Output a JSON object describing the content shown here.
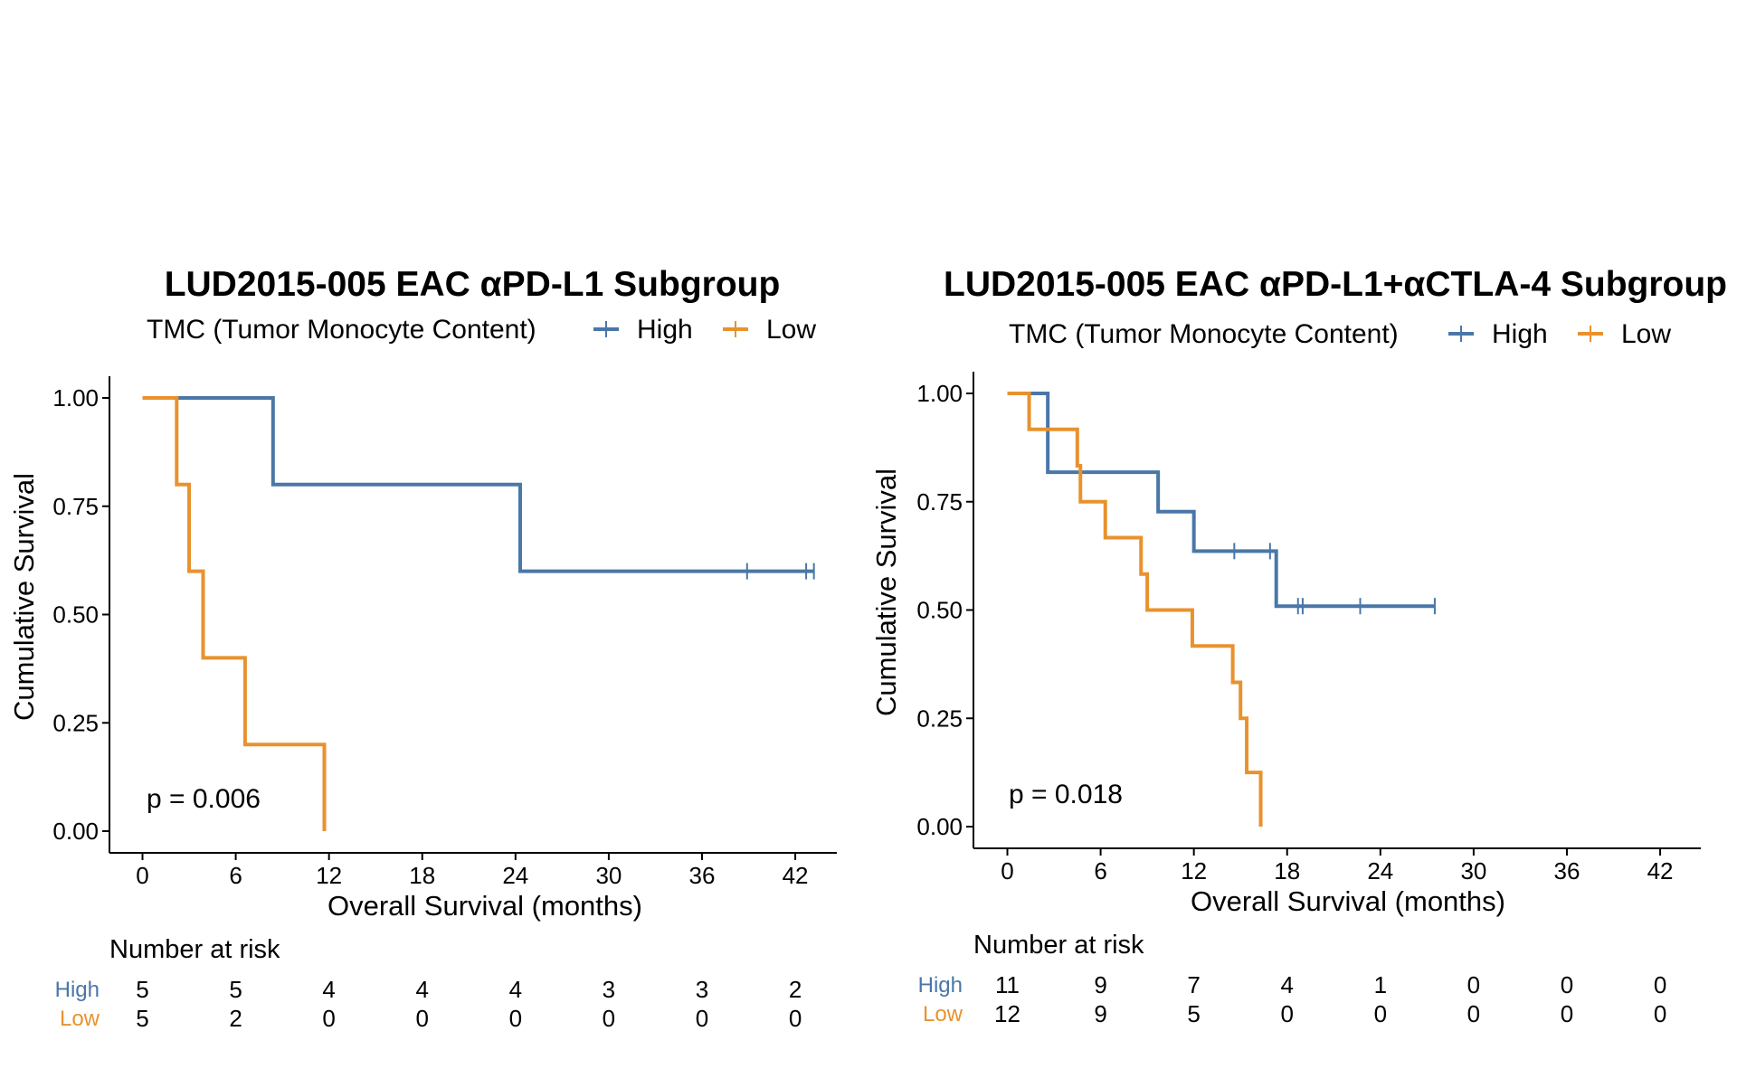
{
  "colors": {
    "high": "#4a77a7",
    "low": "#e8922e",
    "axis": "#000000"
  },
  "chart_data": [
    {
      "type": "line",
      "title": "LUD2015-005 EAC αPD-L1 Subgroup",
      "legend": {
        "title": "TMC (Tumor Monocyte Content)",
        "position": "top",
        "entries": [
          "High",
          "Low"
        ]
      },
      "xlabel": "Overall Survival (months)",
      "ylabel": "Cumulative Survival",
      "xlim": [
        0,
        43
      ],
      "ylim": [
        0,
        1
      ],
      "xticks": [
        0,
        6,
        12,
        18,
        24,
        30,
        36,
        42
      ],
      "xtick_labels": [
        "0",
        "6",
        "12",
        "18",
        "24",
        "30",
        "36",
        "42"
      ],
      "yticks": [
        0,
        0.25,
        0.5,
        0.75,
        1
      ],
      "ytick_labels": [
        "0.00",
        "0.25",
        "0.50",
        "0.75",
        "1.00"
      ],
      "pvalue": "p = 0.006",
      "series": [
        {
          "name": "High",
          "color": "#4a77a7",
          "x": [
            0,
            8.4,
            24.3,
            43.2
          ],
          "y": [
            1,
            0.8,
            0.6,
            0.6
          ],
          "censored": [
            [
              38.9,
              0.6
            ],
            [
              42.7,
              0.6
            ],
            [
              43.2,
              0.6
            ]
          ]
        },
        {
          "name": "Low",
          "color": "#e8922e",
          "x": [
            0,
            2.2,
            3.0,
            3.9,
            6.6,
            11.7
          ],
          "y": [
            1,
            0.8,
            0.6,
            0.4,
            0.2,
            0
          ],
          "censored": []
        }
      ],
      "risk_table": {
        "title": "Number at risk",
        "rows": [
          {
            "label": "High",
            "values": [
              "5",
              "5",
              "4",
              "4",
              "4",
              "3",
              "3",
              "2"
            ]
          },
          {
            "label": "Low",
            "values": [
              "5",
              "2",
              "0",
              "0",
              "0",
              "0",
              "0",
              "0"
            ]
          }
        ]
      }
    },
    {
      "type": "line",
      "title": "LUD2015-005 EAC αPD-L1+αCTLA-4 Subgroup",
      "legend": {
        "title": "TMC (Tumor Monocyte Content)",
        "position": "top",
        "entries": [
          "High",
          "Low"
        ]
      },
      "xlabel": "Overall Survival (months)",
      "ylabel": "Cumulative Survival",
      "xlim": [
        0,
        43
      ],
      "ylim": [
        0,
        1
      ],
      "xticks": [
        0,
        6,
        12,
        18,
        24,
        30,
        36,
        42
      ],
      "xtick_labels": [
        "0",
        "6",
        "12",
        "18",
        "24",
        "30",
        "36",
        "42"
      ],
      "yticks": [
        0,
        0.25,
        0.5,
        0.75,
        1
      ],
      "ytick_labels": [
        "0.00",
        "0.25",
        "0.50",
        "0.75",
        "1.00"
      ],
      "pvalue": "p = 0.018",
      "series": [
        {
          "name": "High",
          "color": "#4a77a7",
          "x": [
            0,
            2.6,
            9.7,
            12.0,
            17.3,
            27.5
          ],
          "y": [
            1,
            0.818,
            0.727,
            0.636,
            0.509,
            0.509
          ],
          "censored": [
            [
              14.6,
              0.636
            ],
            [
              16.9,
              0.636
            ],
            [
              18.7,
              0.509
            ],
            [
              19.0,
              0.509
            ],
            [
              22.7,
              0.509
            ],
            [
              27.5,
              0.509
            ]
          ]
        },
        {
          "name": "Low",
          "color": "#e8922e",
          "x": [
            0,
            1.4,
            4.5,
            4.7,
            6.3,
            8.6,
            9.0,
            11.9,
            14.5,
            15.0,
            15.4,
            15.6,
            16.3
          ],
          "y": [
            1,
            0.917,
            0.833,
            0.75,
            0.667,
            0.583,
            0.5,
            0.417,
            0.333,
            0.25,
            0.125,
            0.125,
            0
          ],
          "censored": []
        }
      ],
      "risk_table": {
        "title": "Number at risk",
        "rows": [
          {
            "label": "High",
            "values": [
              "11",
              "9",
              "7",
              "4",
              "1",
              "0",
              "0",
              "0"
            ]
          },
          {
            "label": "Low",
            "values": [
              "12",
              "9",
              "5",
              "0",
              "0",
              "0",
              "0",
              "0"
            ]
          }
        ]
      }
    }
  ]
}
